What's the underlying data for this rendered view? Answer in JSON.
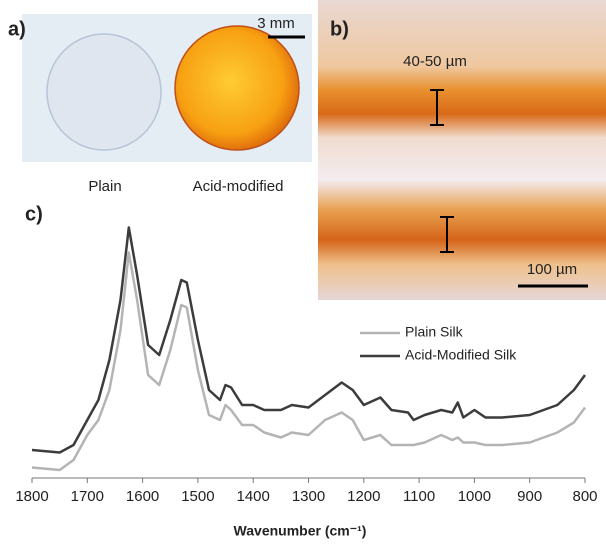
{
  "panels": {
    "a": {
      "label": "a)",
      "scale": "3 mm",
      "captions": [
        "Plain",
        "Acid-modified"
      ]
    },
    "b": {
      "label": "b)",
      "thickness": "40-50 µm",
      "scale": "100 µm"
    },
    "c": {
      "label": "c)"
    }
  },
  "chart_data": {
    "type": "line",
    "xlabel": "Wavenumber (cm⁻¹)",
    "x": [
      1800,
      1750,
      1725,
      1700,
      1680,
      1660,
      1640,
      1625,
      1610,
      1590,
      1570,
      1550,
      1530,
      1520,
      1500,
      1480,
      1460,
      1450,
      1440,
      1420,
      1400,
      1380,
      1350,
      1330,
      1300,
      1270,
      1240,
      1220,
      1200,
      1170,
      1150,
      1120,
      1110,
      1090,
      1060,
      1040,
      1030,
      1020,
      1000,
      980,
      950,
      900,
      850,
      820,
      800
    ],
    "series": [
      {
        "name": "Plain Silk",
        "color": "#b4b4b4",
        "values": [
          1,
          0,
          4,
          14,
          20,
          32,
          56,
          87,
          68,
          38,
          34,
          48,
          66,
          65,
          40,
          22,
          20,
          26,
          24,
          18,
          18,
          15,
          13,
          15,
          14,
          20,
          23,
          20,
          12,
          14,
          10,
          10,
          10,
          11,
          14,
          12,
          13,
          11,
          11,
          10,
          10,
          11,
          15,
          19,
          25
        ]
      },
      {
        "name": "Acid-Modified Silk",
        "color": "#3c3c3c",
        "values": [
          8,
          7,
          10,
          20,
          28,
          44,
          68,
          97,
          78,
          50,
          46,
          60,
          76,
          75,
          52,
          32,
          28,
          34,
          33,
          26,
          26,
          24,
          24,
          26,
          25,
          30,
          35,
          32,
          26,
          29,
          24,
          23,
          20,
          22,
          24,
          23,
          27,
          21,
          24,
          21,
          21,
          22,
          26,
          32,
          38
        ]
      }
    ],
    "xlim": [
      1800,
      800
    ],
    "xticks": [
      1800,
      1700,
      1600,
      1500,
      1400,
      1300,
      1200,
      1100,
      1000,
      900,
      800
    ],
    "ylim": [
      0,
      100
    ],
    "legend": "upper right"
  }
}
